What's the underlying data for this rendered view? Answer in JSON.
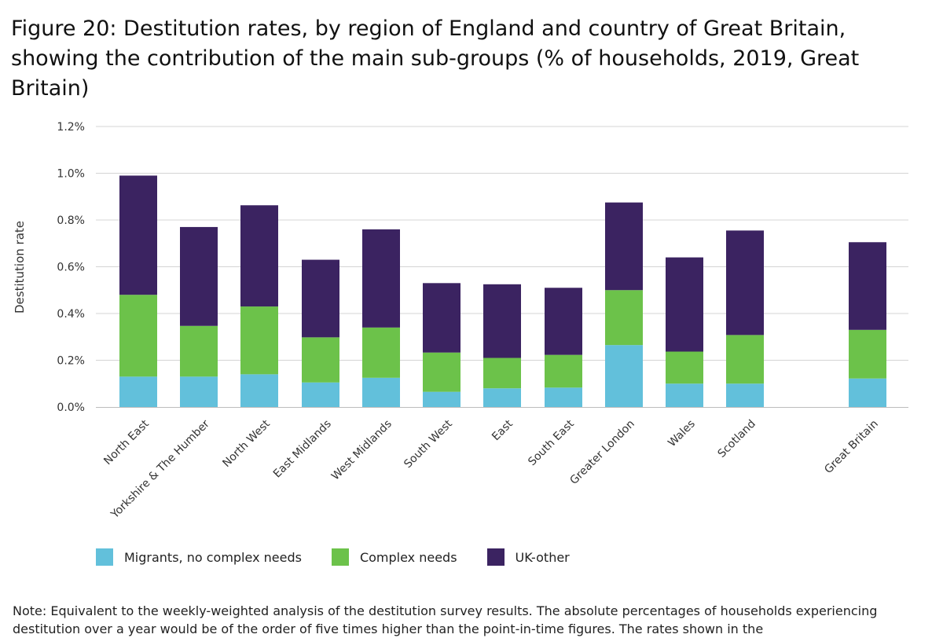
{
  "figure": {
    "title": "Figure 20: Destitution rates, by region of England and country of Great Britain, showing the contribution of the main sub-groups (% of households, 2019, Great Britain)",
    "note": "Note: Equivalent to the weekly-weighted analysis of the destitution survey results. The absolute percentages of households experiencing destitution over a year would be of the order of five times higher than the point-in-time figures. The rates shown in the"
  },
  "chart_data": {
    "type": "bar",
    "stacked": true,
    "ylabel": "Destitution rate",
    "xlabel": "",
    "ylim": [
      0,
      1.2
    ],
    "y_ticks": [
      0,
      0.2,
      0.4,
      0.6,
      0.8,
      1.0,
      1.2
    ],
    "y_tick_labels": [
      "0.0%",
      "0.2%",
      "0.4%",
      "0.6%",
      "0.8%",
      "1.0%",
      "1.2%"
    ],
    "grid": true,
    "legend_position": "bottom",
    "categories": [
      "North East",
      "Yorkshire & The Humber",
      "North West",
      "East Midlands",
      "West Midlands",
      "South West",
      "East",
      "South East",
      "Greater London",
      "Wales",
      "Scotland",
      "Great Britain"
    ],
    "series": [
      {
        "name": "Migrants, no complex needs",
        "color": "#62c0db",
        "values": [
          0.13,
          0.13,
          0.14,
          0.105,
          0.125,
          0.065,
          0.08,
          0.083,
          0.265,
          0.1,
          0.1,
          0.122
        ]
      },
      {
        "name": "Complex needs",
        "color": "#6cc24a",
        "values": [
          0.35,
          0.217,
          0.29,
          0.193,
          0.215,
          0.168,
          0.13,
          0.14,
          0.235,
          0.137,
          0.208,
          0.208
        ]
      },
      {
        "name": "UK-other",
        "color": "#3b2361",
        "values": [
          0.51,
          0.423,
          0.433,
          0.332,
          0.42,
          0.297,
          0.315,
          0.287,
          0.375,
          0.403,
          0.447,
          0.375
        ]
      }
    ]
  }
}
